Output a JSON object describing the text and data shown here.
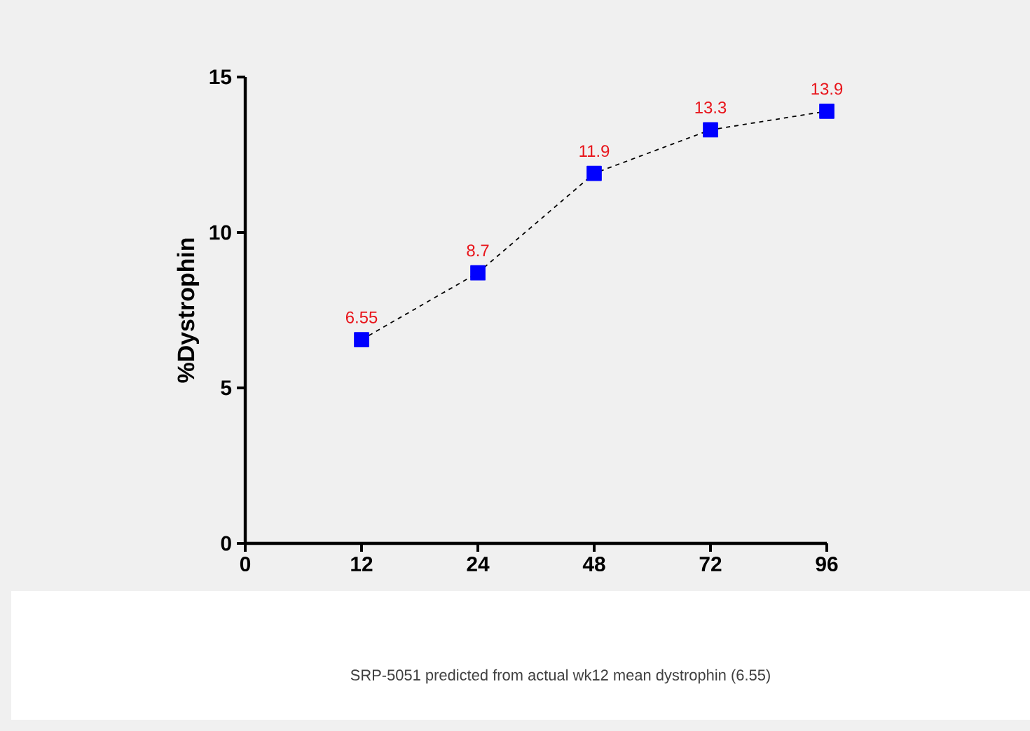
{
  "chart_data": {
    "type": "line",
    "ylabel": "%Dystrophin",
    "categories": [
      "0",
      "12",
      "24",
      "48",
      "72",
      "96"
    ],
    "values": [
      null,
      6.55,
      8.7,
      11.9,
      13.3,
      13.9
    ],
    "color": "#0000ff",
    "ylim": [
      0,
      15
    ],
    "yticks": [
      0,
      5,
      10,
      15
    ],
    "data_labels": true,
    "marker": "square",
    "line_style": "dashed",
    "annotations": [
      "SRP-5051 predicted from actual wk12 mean dystrophin (6.55)"
    ]
  }
}
